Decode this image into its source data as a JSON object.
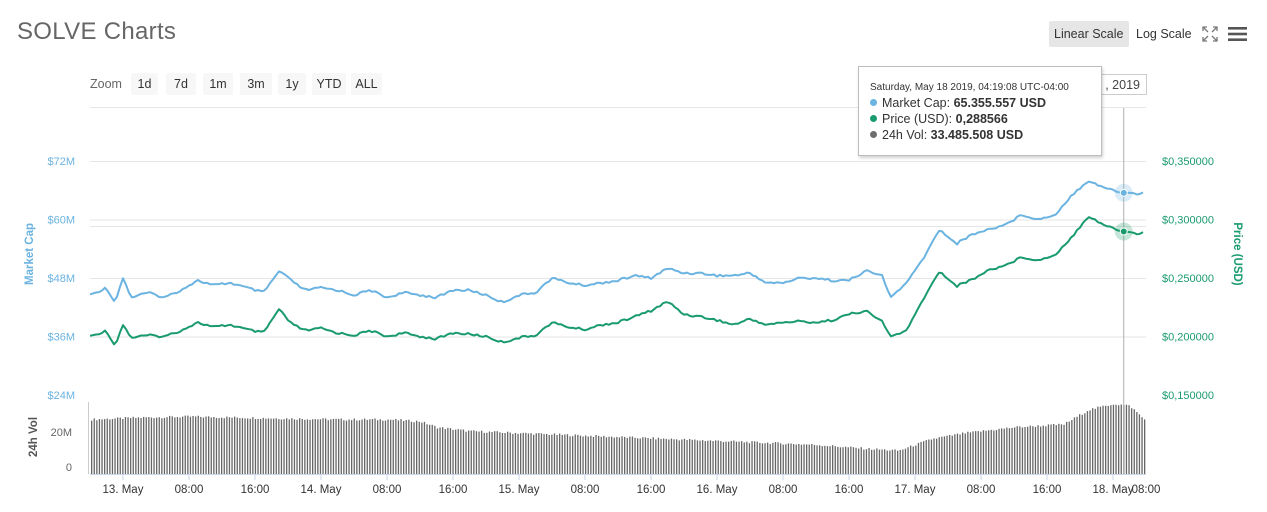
{
  "title": "SOLVE Charts",
  "toolbar": {
    "linear_label": "Linear Scale",
    "log_label": "Log Scale",
    "expand_icon": "expand-icon",
    "menu_icon": "hamburger-menu-icon"
  },
  "zoom": {
    "label": "Zoom",
    "buttons": [
      "1d",
      "7d",
      "1m",
      "3m",
      "1y",
      "YTD",
      "ALL"
    ]
  },
  "date_range": {
    "to_value": ", 2019"
  },
  "tooltip": {
    "date": "Saturday, May 18 2019, 04:19:08 UTC-04:00",
    "rows": [
      {
        "label": "Market Cap:",
        "value": "65.355.557 USD",
        "color": "#6bb3e0"
      },
      {
        "label": "Price (USD):",
        "value": "0,288566",
        "color": "#1a9b6d"
      },
      {
        "label": "24h Vol:",
        "value": "33.485.508 USD",
        "color": "#6e6e6e"
      }
    ]
  },
  "colors": {
    "market_cap": "#6bb3e0",
    "price": "#1a9b6d",
    "volume": "#666666",
    "grid": "#e6e6e6",
    "axis_text": "#666666"
  },
  "chart_data": {
    "type": "line",
    "x_tick_labels": [
      "13. May",
      "08:00",
      "16:00",
      "14. May",
      "08:00",
      "16:00",
      "15. May",
      "08:00",
      "16:00",
      "16. May",
      "08:00",
      "16:00",
      "17. May",
      "08:00",
      "16:00",
      "18. May",
      "08:00"
    ],
    "x_range_hours": [
      0,
      128
    ],
    "x_ticks_hours": [
      4,
      12,
      20,
      28,
      36,
      44,
      52,
      60,
      68,
      76,
      84,
      92,
      100,
      108,
      116,
      124,
      132
    ],
    "left_axis": {
      "label": "Market Cap",
      "ticks": [
        "$72M",
        "$60M",
        "$48M",
        "$36M",
        "$24M"
      ],
      "range": [
        24000000,
        72000000
      ]
    },
    "right_axis": {
      "label": "Price (USD)",
      "ticks": [
        "$0,350000",
        "$0,300000",
        "$0,250000",
        "$0,200000",
        "$0,150000"
      ],
      "range": [
        0.15,
        0.35
      ]
    },
    "volume_axis": {
      "label": "24h Vol",
      "ticks": [
        "20M",
        "0"
      ]
    },
    "series": [
      {
        "name": "Market Cap",
        "axis": "left",
        "points": [
          [
            0,
            44.5
          ],
          [
            2,
            46
          ],
          [
            3,
            43
          ],
          [
            4,
            48
          ],
          [
            5,
            44
          ],
          [
            7,
            45
          ],
          [
            9,
            44
          ],
          [
            11,
            45.5
          ],
          [
            13,
            47.5
          ],
          [
            15,
            46.5
          ],
          [
            17,
            47
          ],
          [
            19,
            46
          ],
          [
            21,
            45
          ],
          [
            23,
            49.5
          ],
          [
            24,
            48
          ],
          [
            26,
            45.5
          ],
          [
            28,
            46
          ],
          [
            30,
            45.5
          ],
          [
            32,
            44.5
          ],
          [
            34,
            45.5
          ],
          [
            36,
            44
          ],
          [
            38,
            45
          ],
          [
            40,
            44.5
          ],
          [
            42,
            44
          ],
          [
            44,
            45.5
          ],
          [
            46,
            45.5
          ],
          [
            48,
            44.5
          ],
          [
            50,
            43
          ],
          [
            52,
            44.5
          ],
          [
            54,
            45
          ],
          [
            56,
            48
          ],
          [
            58,
            47
          ],
          [
            60,
            46.5
          ],
          [
            62,
            47
          ],
          [
            64,
            47.5
          ],
          [
            66,
            48.5
          ],
          [
            68,
            48
          ],
          [
            70,
            50
          ],
          [
            72,
            49
          ],
          [
            74,
            49
          ],
          [
            76,
            48.5
          ],
          [
            78,
            48.5
          ],
          [
            80,
            49
          ],
          [
            82,
            47
          ],
          [
            84,
            47
          ],
          [
            86,
            48
          ],
          [
            88,
            48
          ],
          [
            90,
            47.5
          ],
          [
            92,
            47.5
          ],
          [
            94,
            49.5
          ],
          [
            96,
            48.5
          ],
          [
            97,
            44
          ],
          [
            99,
            47
          ],
          [
            101,
            52
          ],
          [
            103,
            58
          ],
          [
            105,
            55
          ],
          [
            107,
            57
          ],
          [
            109,
            58
          ],
          [
            111,
            59
          ],
          [
            113,
            61
          ],
          [
            115,
            60
          ],
          [
            117,
            61
          ],
          [
            119,
            65
          ],
          [
            121,
            68
          ],
          [
            123,
            66.5
          ],
          [
            125,
            65.5
          ],
          [
            127,
            65.3
          ],
          [
            128,
            65.5
          ]
        ]
      },
      {
        "name": "Price (USD)",
        "axis": "right",
        "points": [
          [
            0,
            0.2
          ],
          [
            2,
            0.205
          ],
          [
            3,
            0.192
          ],
          [
            4,
            0.21
          ],
          [
            5,
            0.199
          ],
          [
            7,
            0.201
          ],
          [
            9,
            0.2
          ],
          [
            11,
            0.205
          ],
          [
            13,
            0.212
          ],
          [
            15,
            0.208
          ],
          [
            17,
            0.21
          ],
          [
            19,
            0.206
          ],
          [
            21,
            0.203
          ],
          [
            23,
            0.224
          ],
          [
            24,
            0.213
          ],
          [
            26,
            0.205
          ],
          [
            28,
            0.207
          ],
          [
            30,
            0.203
          ],
          [
            32,
            0.201
          ],
          [
            34,
            0.205
          ],
          [
            36,
            0.2
          ],
          [
            38,
            0.203
          ],
          [
            40,
            0.2
          ],
          [
            42,
            0.198
          ],
          [
            44,
            0.203
          ],
          [
            46,
            0.202
          ],
          [
            48,
            0.2
          ],
          [
            50,
            0.195
          ],
          [
            52,
            0.199
          ],
          [
            54,
            0.201
          ],
          [
            56,
            0.212
          ],
          [
            58,
            0.208
          ],
          [
            60,
            0.206
          ],
          [
            62,
            0.21
          ],
          [
            64,
            0.212
          ],
          [
            66,
            0.217
          ],
          [
            68,
            0.222
          ],
          [
            70,
            0.23
          ],
          [
            72,
            0.219
          ],
          [
            74,
            0.217
          ],
          [
            76,
            0.214
          ],
          [
            78,
            0.21
          ],
          [
            80,
            0.215
          ],
          [
            82,
            0.21
          ],
          [
            84,
            0.212
          ],
          [
            86,
            0.213
          ],
          [
            88,
            0.212
          ],
          [
            90,
            0.214
          ],
          [
            92,
            0.219
          ],
          [
            94,
            0.222
          ],
          [
            96,
            0.213
          ],
          [
            97,
            0.2
          ],
          [
            99,
            0.205
          ],
          [
            101,
            0.232
          ],
          [
            103,
            0.256
          ],
          [
            105,
            0.243
          ],
          [
            107,
            0.249
          ],
          [
            109,
            0.257
          ],
          [
            111,
            0.261
          ],
          [
            113,
            0.268
          ],
          [
            115,
            0.265
          ],
          [
            117,
            0.27
          ],
          [
            119,
            0.285
          ],
          [
            121,
            0.303
          ],
          [
            123,
            0.295
          ],
          [
            125,
            0.29
          ],
          [
            127,
            0.288
          ],
          [
            128,
            0.289
          ]
        ]
      },
      {
        "name": "24h Vol",
        "axis": "volume",
        "points": [
          [
            0,
            28
          ],
          [
            6,
            29
          ],
          [
            12,
            29.5
          ],
          [
            18,
            29
          ],
          [
            24,
            28.5
          ],
          [
            30,
            28
          ],
          [
            36,
            28
          ],
          [
            40,
            27
          ],
          [
            42,
            24
          ],
          [
            46,
            22
          ],
          [
            52,
            21
          ],
          [
            58,
            20
          ],
          [
            64,
            19
          ],
          [
            70,
            18
          ],
          [
            76,
            17
          ],
          [
            82,
            16
          ],
          [
            88,
            15
          ],
          [
            94,
            13
          ],
          [
            98,
            12
          ],
          [
            102,
            18
          ],
          [
            106,
            21
          ],
          [
            112,
            24
          ],
          [
            118,
            25.5
          ],
          [
            121,
            33
          ],
          [
            124,
            36
          ],
          [
            126,
            35
          ],
          [
            128,
            27
          ]
        ]
      }
    ],
    "crosshair_hour": 125.3,
    "legend": "none"
  }
}
